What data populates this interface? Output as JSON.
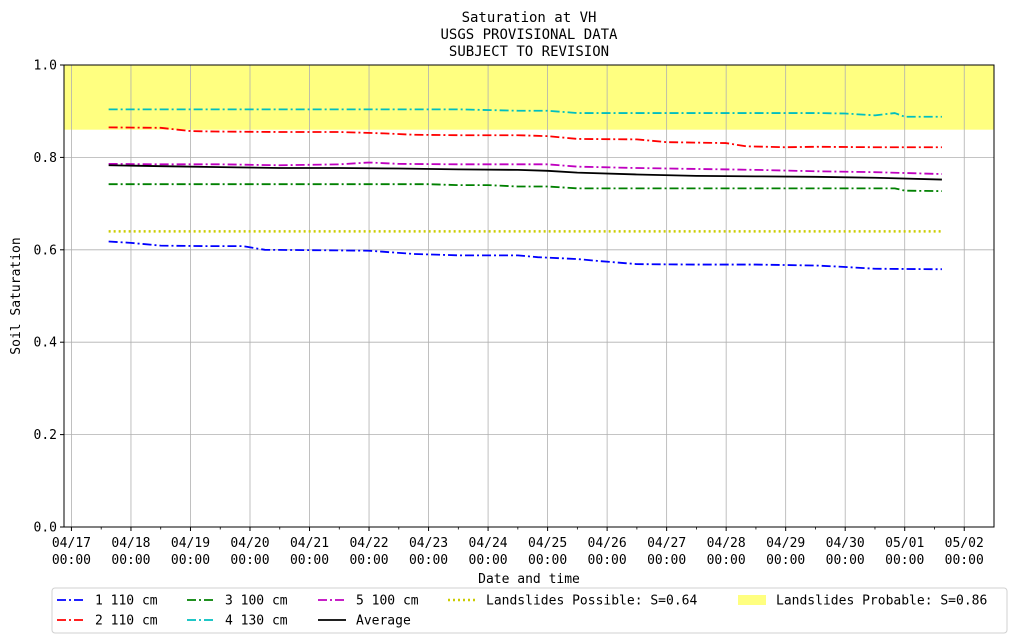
{
  "chart_data": {
    "type": "line",
    "title_lines": [
      "Saturation at VH",
      "USGS PROVISIONAL DATA",
      "SUBJECT TO REVISION"
    ],
    "xlabel": "Date and time",
    "ylabel": "Soil Saturation",
    "ylim": [
      0.0,
      1.0
    ],
    "xlim": [
      "2023-04-16T21:00",
      "2023-05-02T12:00"
    ],
    "y_ticks": [
      "0.0",
      "0.2",
      "0.4",
      "0.6",
      "0.8",
      "1.0"
    ],
    "x_ticks": [
      {
        "line1": "04/17",
        "line2": "00:00"
      },
      {
        "line1": "04/18",
        "line2": "00:00"
      },
      {
        "line1": "04/19",
        "line2": "00:00"
      },
      {
        "line1": "04/20",
        "line2": "00:00"
      },
      {
        "line1": "04/21",
        "line2": "00:00"
      },
      {
        "line1": "04/22",
        "line2": "00:00"
      },
      {
        "line1": "04/23",
        "line2": "00:00"
      },
      {
        "line1": "04/24",
        "line2": "00:00"
      },
      {
        "line1": "04/25",
        "line2": "00:00"
      },
      {
        "line1": "04/26",
        "line2": "00:00"
      },
      {
        "line1": "04/27",
        "line2": "00:00"
      },
      {
        "line1": "04/28",
        "line2": "00:00"
      },
      {
        "line1": "04/29",
        "line2": "00:00"
      },
      {
        "line1": "04/30",
        "line2": "00:00"
      },
      {
        "line1": "05/01",
        "line2": "00:00"
      },
      {
        "line1": "05/02",
        "line2": "00:00"
      }
    ],
    "grid": true,
    "legend_position": "bottom",
    "series": [
      {
        "name": "1 110 cm",
        "color": "#0000ff",
        "style": "dashdot",
        "x": [
          "2023-04-17T15:00",
          "2023-04-18T00:00",
          "2023-04-18T12:00",
          "2023-04-19T06:00",
          "2023-04-19T21:00",
          "2023-04-20T06:00",
          "2023-04-21T06:00",
          "2023-04-22T00:00",
          "2023-04-22T18:00",
          "2023-04-23T12:00",
          "2023-04-24T12:00",
          "2023-04-24T20:00",
          "2023-04-25T12:00",
          "2023-04-25T20:00",
          "2023-04-26T12:00",
          "2023-04-27T12:00",
          "2023-04-28T12:00",
          "2023-04-29T12:00",
          "2023-04-29T20:00",
          "2023-04-30T12:00",
          "2023-05-01T12:00",
          "2023-05-01T15:00"
        ],
        "y": [
          0.618,
          0.615,
          0.609,
          0.608,
          0.608,
          0.6,
          0.599,
          0.598,
          0.591,
          0.588,
          0.588,
          0.584,
          0.58,
          0.576,
          0.569,
          0.568,
          0.568,
          0.566,
          0.564,
          0.559,
          0.558,
          0.558
        ]
      },
      {
        "name": "2 110 cm",
        "color": "#ff0000",
        "style": "dashdot",
        "x": [
          "2023-04-17T15:00",
          "2023-04-18T12:00",
          "2023-04-19T00:00",
          "2023-04-19T10:00",
          "2023-04-20T12:00",
          "2023-04-21T12:00",
          "2023-04-22T06:00",
          "2023-04-22T18:00",
          "2023-04-23T12:00",
          "2023-04-24T12:00",
          "2023-04-25T00:00",
          "2023-04-25T12:00",
          "2023-04-26T12:00",
          "2023-04-27T00:00",
          "2023-04-27T12:00",
          "2023-04-28T00:00",
          "2023-04-28T08:00",
          "2023-04-29T00:00",
          "2023-04-29T12:00",
          "2023-04-30T12:00",
          "2023-05-01T15:00"
        ],
        "y": [
          0.865,
          0.864,
          0.857,
          0.856,
          0.855,
          0.855,
          0.852,
          0.849,
          0.848,
          0.848,
          0.846,
          0.84,
          0.839,
          0.833,
          0.832,
          0.831,
          0.824,
          0.822,
          0.823,
          0.822,
          0.822
        ]
      },
      {
        "name": "3 100 cm",
        "color": "#008000",
        "style": "dashdot",
        "x": [
          "2023-04-17T15:00",
          "2023-04-18T12:00",
          "2023-04-19T12:00",
          "2023-04-20T12:00",
          "2023-04-21T12:00",
          "2023-04-22T12:00",
          "2023-04-23T00:00",
          "2023-04-23T12:00",
          "2023-04-24T00:00",
          "2023-04-24T12:00",
          "2023-04-25T00:00",
          "2023-04-25T12:00",
          "2023-04-26T12:00",
          "2023-04-27T12:00",
          "2023-04-28T12:00",
          "2023-04-29T12:00",
          "2023-04-30T12:00",
          "2023-04-30T20:00",
          "2023-05-01T00:00",
          "2023-05-01T15:00"
        ],
        "y": [
          0.742,
          0.742,
          0.742,
          0.742,
          0.742,
          0.742,
          0.742,
          0.74,
          0.74,
          0.737,
          0.737,
          0.733,
          0.733,
          0.733,
          0.733,
          0.733,
          0.733,
          0.733,
          0.728,
          0.727
        ]
      },
      {
        "name": "4 130 cm",
        "color": "#00bfbf",
        "style": "dashdot",
        "x": [
          "2023-04-17T15:00",
          "2023-04-18T12:00",
          "2023-04-19T12:00",
          "2023-04-20T12:00",
          "2023-04-21T12:00",
          "2023-04-22T12:00",
          "2023-04-23T12:00",
          "2023-04-23T20:00",
          "2023-04-24T12:00",
          "2023-04-25T00:00",
          "2023-04-25T12:00",
          "2023-04-26T12:00",
          "2023-04-27T12:00",
          "2023-04-28T12:00",
          "2023-04-29T12:00",
          "2023-04-30T00:00",
          "2023-04-30T12:00",
          "2023-04-30T20:00",
          "2023-05-01T00:00",
          "2023-05-01T15:00"
        ],
        "y": [
          0.904,
          0.904,
          0.904,
          0.904,
          0.904,
          0.904,
          0.904,
          0.903,
          0.901,
          0.901,
          0.896,
          0.896,
          0.896,
          0.896,
          0.896,
          0.895,
          0.891,
          0.896,
          0.888,
          0.888
        ]
      },
      {
        "name": "5 100 cm",
        "color": "#bf00bf",
        "style": "dashdot",
        "x": [
          "2023-04-17T15:00",
          "2023-04-18T12:00",
          "2023-04-19T12:00",
          "2023-04-20T12:00",
          "2023-04-21T12:00",
          "2023-04-22T00:00",
          "2023-04-22T12:00",
          "2023-04-23T12:00",
          "2023-04-24T12:00",
          "2023-04-25T00:00",
          "2023-04-25T12:00",
          "2023-04-26T12:00",
          "2023-04-27T12:00",
          "2023-04-28T12:00",
          "2023-04-29T12:00",
          "2023-04-30T12:00",
          "2023-05-01T15:00"
        ],
        "y": [
          0.786,
          0.785,
          0.785,
          0.783,
          0.785,
          0.789,
          0.786,
          0.785,
          0.785,
          0.785,
          0.78,
          0.777,
          0.775,
          0.773,
          0.77,
          0.768,
          0.764
        ]
      },
      {
        "name": "Average",
        "color": "#000000",
        "style": "solid",
        "x": [
          "2023-04-17T15:00",
          "2023-04-18T12:00",
          "2023-04-19T12:00",
          "2023-04-20T12:00",
          "2023-04-21T12:00",
          "2023-04-22T12:00",
          "2023-04-23T12:00",
          "2023-04-24T12:00",
          "2023-04-25T00:00",
          "2023-04-25T12:00",
          "2023-04-26T12:00",
          "2023-04-27T12:00",
          "2023-04-28T12:00",
          "2023-04-29T12:00",
          "2023-04-30T12:00",
          "2023-05-01T15:00"
        ],
        "y": [
          0.783,
          0.781,
          0.779,
          0.777,
          0.777,
          0.776,
          0.774,
          0.773,
          0.771,
          0.767,
          0.763,
          0.76,
          0.759,
          0.758,
          0.756,
          0.752
        ]
      }
    ],
    "thresholds": [
      {
        "name": "Landslides Possible: S=0.64",
        "value": 0.64,
        "color": "#cccc00",
        "style": "dotted",
        "x_range": [
          "2023-04-17T15:00",
          "2023-05-01T15:00"
        ]
      },
      {
        "name": "Landslides Probable: S=0.86",
        "value": 0.86,
        "color": "#ffff80",
        "style": "band",
        "band_top": 1.0
      }
    ],
    "legend_items": [
      {
        "label": "1 110 cm",
        "color": "#0000ff",
        "kind": "dashdot"
      },
      {
        "label": "2 110 cm",
        "color": "#ff0000",
        "kind": "dashdot"
      },
      {
        "label": "3 100 cm",
        "color": "#008000",
        "kind": "dashdot"
      },
      {
        "label": "4 130 cm",
        "color": "#00bfbf",
        "kind": "dashdot"
      },
      {
        "label": "5 100 cm",
        "color": "#bf00bf",
        "kind": "dashdot"
      },
      {
        "label": "Average",
        "color": "#000000",
        "kind": "solid"
      },
      {
        "label": "Landslides Possible: S=0.64",
        "color": "#cccc00",
        "kind": "dotted"
      },
      {
        "label": "Landslides Probable: S=0.86",
        "color": "#ffff80",
        "kind": "patch"
      }
    ]
  }
}
